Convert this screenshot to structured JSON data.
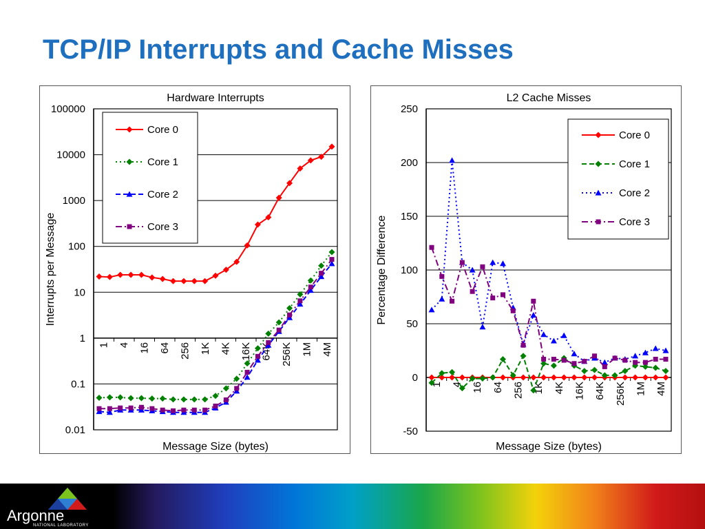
{
  "slide": {
    "title": "TCP/IP Interrupts and Cache Misses"
  },
  "footer": {
    "logo_name": "Argonne",
    "logo_sub": "NATIONAL LABORATORY"
  },
  "chart_data": [
    {
      "id": "hardware-interrupts",
      "type": "line",
      "title": "Hardware Interrupts",
      "xlabel": "Message Size (bytes)",
      "ylabel": "Interrupts per Message",
      "yscale": "log",
      "ylim": [
        0.01,
        100000
      ],
      "yticks": [
        0.01,
        0.1,
        1,
        10,
        100,
        1000,
        10000,
        100000
      ],
      "ytick_labels": [
        "0.01",
        "0.1",
        "1",
        "10",
        "100",
        "1000",
        "10000",
        "100000"
      ],
      "xaxis_at_y": 1,
      "x_labels": [
        "1",
        "4",
        "16",
        "64",
        "256",
        "1K",
        "4K",
        "16K",
        "64K",
        "256K",
        "1M",
        "4M"
      ],
      "grid": true,
      "legend_position": "top-left",
      "series": [
        {
          "name": "Core 0",
          "color": "#ff0000",
          "style": "solid",
          "marker": "diamond",
          "values": [
            22,
            21.5,
            24,
            24,
            24,
            21,
            19.5,
            17.5,
            17.5,
            17.5,
            17.5,
            23,
            31,
            46,
            105,
            300,
            430,
            1150,
            2400,
            5000,
            7500,
            9000,
            15000
          ]
        },
        {
          "name": "Core 1",
          "color": "#008000",
          "style": "dotted",
          "marker": "diamond",
          "values": [
            0.05,
            0.051,
            0.051,
            0.049,
            0.049,
            0.048,
            0.048,
            0.046,
            0.046,
            0.046,
            0.046,
            0.055,
            0.08,
            0.13,
            0.28,
            0.6,
            1.25,
            2.2,
            4.5,
            9,
            18,
            38,
            75
          ]
        },
        {
          "name": "Core 2",
          "color": "#0000ff",
          "style": "dashed",
          "marker": "triangle",
          "values": [
            0.025,
            0.024,
            0.027,
            0.027,
            0.027,
            0.026,
            0.025,
            0.024,
            0.024,
            0.024,
            0.024,
            0.03,
            0.04,
            0.07,
            0.14,
            0.33,
            0.7,
            1.4,
            2.8,
            5.5,
            11,
            22,
            42
          ]
        },
        {
          "name": "Core 3",
          "color": "#800080",
          "style": "dashdot",
          "marker": "square",
          "values": [
            0.029,
            0.029,
            0.03,
            0.03,
            0.031,
            0.029,
            0.027,
            0.026,
            0.027,
            0.027,
            0.027,
            0.033,
            0.045,
            0.08,
            0.18,
            0.4,
            0.8,
            1.5,
            3.2,
            6.5,
            13,
            26,
            52
          ]
        }
      ]
    },
    {
      "id": "l2-cache-misses",
      "type": "line",
      "title": "L2 Cache Misses",
      "xlabel": "Message Size (bytes)",
      "ylabel": "Percentage Difference",
      "yscale": "linear",
      "ylim": [
        -50,
        250
      ],
      "yticks": [
        -50,
        0,
        50,
        100,
        150,
        200,
        250
      ],
      "ytick_labels": [
        "-50",
        "0",
        "50",
        "100",
        "150",
        "200",
        "250"
      ],
      "xaxis_at_y": 0,
      "x_labels": [
        "1",
        "4",
        "16",
        "64",
        "256",
        "1K",
        "4K",
        "16K",
        "64K",
        "256K",
        "1M",
        "4M"
      ],
      "grid": true,
      "legend_position": "top-right",
      "series": [
        {
          "name": "Core 0",
          "color": "#ff0000",
          "style": "solid",
          "marker": "diamond",
          "values": [
            0,
            0,
            0,
            0,
            0,
            0,
            0,
            0,
            0,
            0,
            0,
            0,
            0,
            0,
            0,
            0,
            0,
            0,
            0,
            0,
            0,
            0,
            0,
            0
          ]
        },
        {
          "name": "Core 1",
          "color": "#008000",
          "style": "dashed",
          "marker": "diamond",
          "values": [
            -5,
            4,
            5,
            -10,
            -1,
            -1,
            0,
            17,
            2,
            20,
            -12,
            13,
            11,
            18,
            11,
            6,
            7,
            2,
            2,
            6,
            11,
            10,
            9,
            6
          ]
        },
        {
          "name": "Core 2",
          "color": "#0000ff",
          "style": "dotted",
          "marker": "triangle",
          "values": [
            63,
            73,
            202,
            107,
            100,
            47,
            107,
            106,
            65,
            31,
            58,
            40,
            34,
            39,
            22,
            15,
            18,
            14,
            18,
            17,
            20,
            23,
            27,
            25
          ]
        },
        {
          "name": "Core 3",
          "color": "#800080",
          "style": "dashdot",
          "marker": "square",
          "values": [
            121,
            94,
            71,
            107,
            80,
            103,
            74,
            77,
            62,
            30,
            71,
            17,
            17,
            16,
            13,
            15,
            20,
            10,
            18,
            16,
            14,
            14,
            17,
            17
          ]
        }
      ]
    }
  ]
}
